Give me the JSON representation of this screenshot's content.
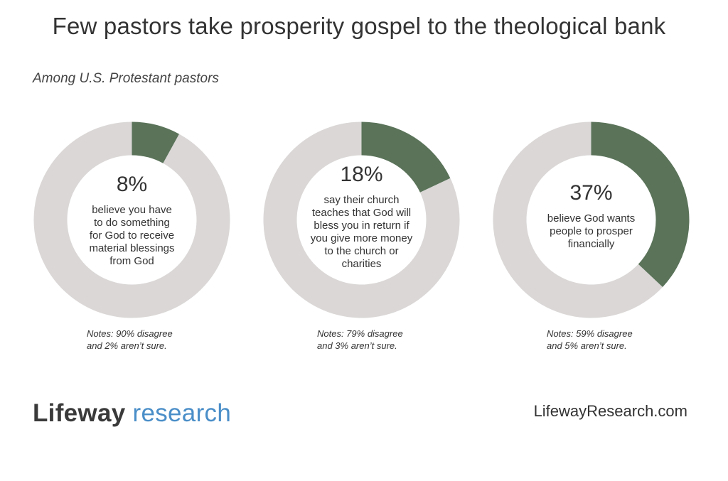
{
  "title": "Few pastors take prosperity gospel to the theological bank",
  "subtitle": "Among U.S. Protestant pastors",
  "colors": {
    "highlight": "#5a7359",
    "remainder": "#dad7d6"
  },
  "chart_data": [
    {
      "type": "pie",
      "value": 8,
      "value_label": "8%",
      "lines": [
        "believe you have",
        "to do something",
        "for God to receive",
        "material blessings",
        "from God"
      ],
      "note_lines": [
        "Notes: 90% disagree",
        "and 2% aren’t sure."
      ]
    },
    {
      "type": "pie",
      "value": 18,
      "value_label": "18%",
      "lines": [
        "say their church",
        "teaches that God will",
        "bless you in return if",
        "you give more money",
        "to the church or",
        "charities"
      ],
      "note_lines": [
        "Notes: 79% disagree",
        "and 3% aren’t sure."
      ]
    },
    {
      "type": "pie",
      "value": 37,
      "value_label": "37%",
      "lines": [
        "believe God wants",
        "people to prosper",
        "financially"
      ],
      "note_lines": [
        "Notes: 59% disagree",
        "and 5% aren’t sure."
      ]
    }
  ],
  "footer": {
    "logo_part1": "Lifeway",
    "logo_part2": "research",
    "site": "LifewayResearch.com"
  }
}
